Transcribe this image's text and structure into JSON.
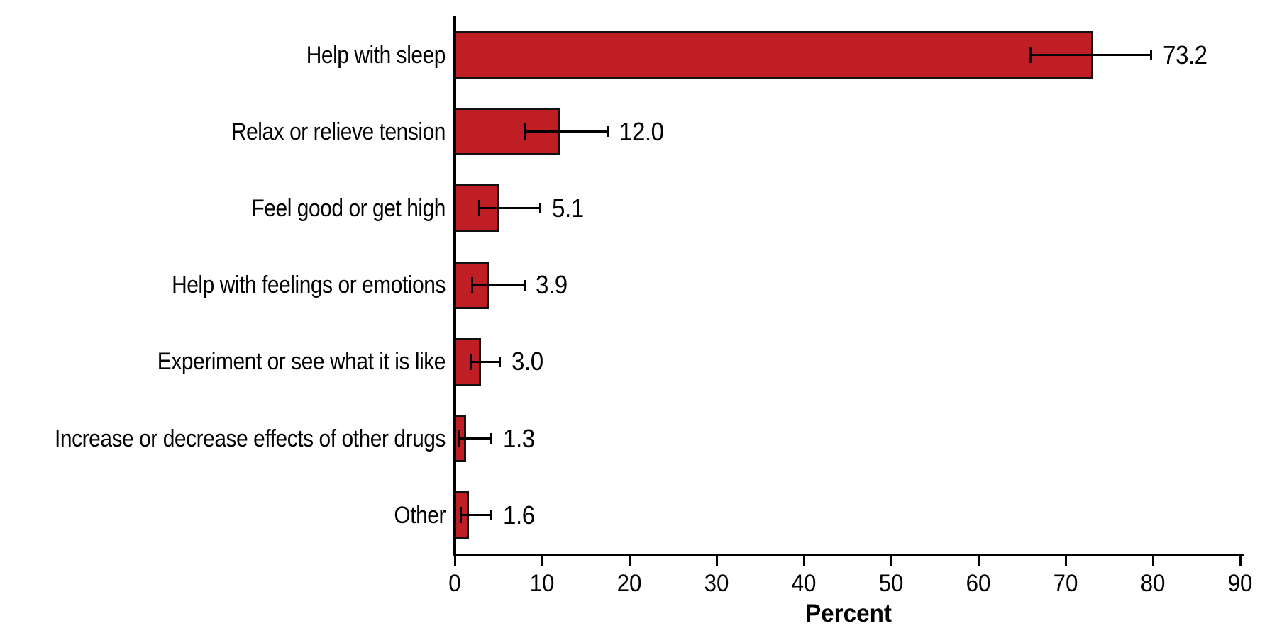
{
  "chart_data": {
    "type": "bar",
    "orientation": "horizontal",
    "title": "",
    "xlabel": "Percent",
    "ylabel": "",
    "xlim": [
      0,
      90
    ],
    "xticks": [
      0,
      10,
      20,
      30,
      40,
      50,
      60,
      70,
      80,
      90
    ],
    "grid": false,
    "legend": "none",
    "bar_color": "#be1e24",
    "bar_border_color": "#111111",
    "error_bar_color": "#000000",
    "categories": [
      "Help with sleep",
      "Relax or relieve tension",
      "Feel good or get high",
      "Help with feelings or emotions",
      "Experiment or see what it is like",
      "Increase or decrease effects of other drugs",
      "Other"
    ],
    "values": [
      73.2,
      12.0,
      5.1,
      3.9,
      3.0,
      1.3,
      1.6
    ],
    "value_labels": [
      "73.2",
      "12.0",
      "5.1",
      "3.9",
      "3.0",
      "1.3",
      "1.6"
    ],
    "error_low": [
      66.0,
      8.0,
      2.8,
      2.0,
      1.8,
      0.5,
      0.7
    ],
    "error_high": [
      79.8,
      17.6,
      9.8,
      8.0,
      5.2,
      4.2,
      4.2
    ]
  }
}
